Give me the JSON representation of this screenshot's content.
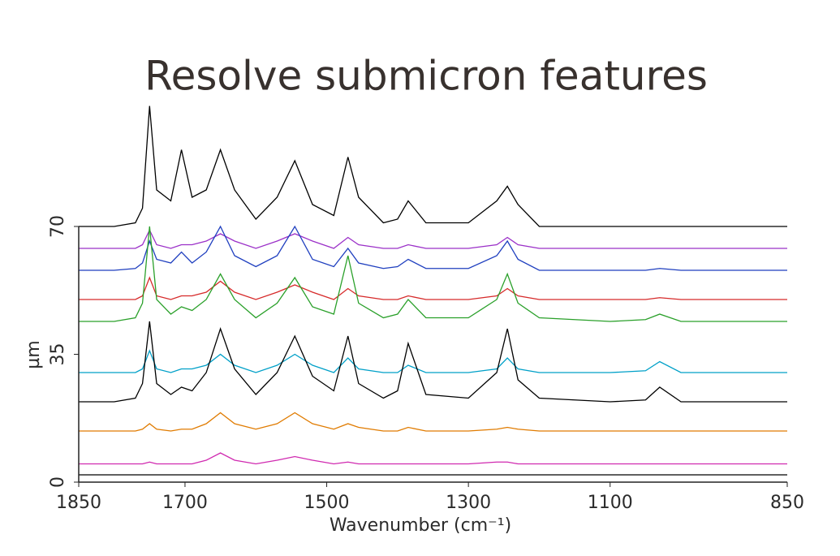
{
  "chart_data": {
    "type": "waterfall",
    "title": "Resolve submicron features",
    "x_label": "Wavenumber (cm⁻¹)",
    "y_label": "µm",
    "xlim": [
      1850,
      850
    ],
    "ylim": [
      0,
      70
    ],
    "xticks": [
      1850,
      1700,
      1500,
      1300,
      1100,
      850
    ],
    "yticks": [
      0,
      35,
      70
    ],
    "x": [
      1850,
      1800,
      1770,
      1760,
      1750,
      1740,
      1720,
      1705,
      1690,
      1670,
      1650,
      1630,
      1600,
      1570,
      1545,
      1520,
      1490,
      1470,
      1455,
      1420,
      1400,
      1385,
      1360,
      1300,
      1260,
      1245,
      1230,
      1200,
      1150,
      1100,
      1050,
      1030,
      1000,
      950,
      900,
      850
    ],
    "series": [
      {
        "color": "#000000",
        "values": [
          70,
          70,
          71,
          75,
          103,
          80,
          77,
          91,
          78,
          80,
          91,
          80,
          72,
          78,
          88,
          76,
          73,
          89,
          78,
          71,
          72,
          77,
          71,
          71,
          77,
          81,
          76,
          70,
          70,
          70,
          70,
          70,
          70,
          70,
          70,
          70
        ]
      },
      {
        "color": "#9b30c8",
        "values": [
          64,
          64,
          64,
          65,
          69,
          65,
          64,
          65,
          65,
          66,
          68,
          66,
          64,
          66,
          68,
          66,
          64,
          67,
          65,
          64,
          64,
          65,
          64,
          64,
          65,
          67,
          65,
          64,
          64,
          64,
          64,
          64,
          64,
          64,
          64,
          64
        ]
      },
      {
        "color": "#1f3fbf",
        "values": [
          58,
          58,
          58.5,
          60,
          66,
          61,
          60,
          63,
          60,
          63,
          70,
          62,
          59,
          62,
          70,
          61,
          59,
          64,
          60,
          58.5,
          59,
          61,
          58.5,
          58.5,
          62,
          66,
          61,
          58,
          58,
          58,
          58,
          58.5,
          58,
          58,
          58,
          58
        ]
      },
      {
        "color": "#d62a2a",
        "values": [
          50,
          50,
          50,
          51,
          56,
          51,
          50,
          51,
          51,
          52,
          55,
          52,
          50,
          52,
          54,
          52,
          50,
          53,
          51,
          50,
          50,
          51,
          50,
          50,
          51,
          53,
          51,
          50,
          50,
          50,
          50,
          50.5,
          50,
          50,
          50,
          50
        ]
      },
      {
        "color": "#2aa02a",
        "values": [
          44,
          44,
          45,
          49,
          70,
          50,
          46,
          48,
          47,
          50,
          57,
          50,
          45,
          49,
          56,
          48,
          46,
          62,
          49,
          45,
          46,
          50,
          45,
          45,
          50,
          57,
          49,
          45,
          44.5,
          44,
          44.5,
          46,
          44,
          44,
          44,
          44
        ]
      },
      {
        "color": "#00a0c8",
        "values": [
          30,
          30,
          30,
          31,
          36,
          31,
          30,
          31,
          31,
          32,
          35,
          32,
          30,
          32,
          35,
          32,
          30,
          34,
          31,
          30,
          30,
          32,
          30,
          30,
          31,
          34,
          31,
          30,
          30,
          30,
          30.5,
          33,
          30,
          30,
          30,
          30
        ]
      },
      {
        "color": "#000000",
        "values": [
          22,
          22,
          23,
          27,
          44,
          27,
          24,
          26,
          25,
          30,
          42,
          31,
          24,
          30,
          40,
          29,
          25,
          40,
          27,
          23,
          25,
          38,
          24,
          23,
          30,
          42,
          28,
          23,
          22.5,
          22,
          22.5,
          26,
          22,
          22,
          22,
          22
        ]
      },
      {
        "color": "#e07b00",
        "values": [
          14,
          14,
          14,
          14.5,
          16,
          14.5,
          14,
          14.5,
          14.5,
          16,
          19,
          16,
          14.5,
          16,
          19,
          16,
          14.5,
          16,
          15,
          14,
          14,
          15,
          14,
          14,
          14.5,
          15,
          14.5,
          14,
          14,
          14,
          14,
          14,
          14,
          14,
          14,
          14
        ]
      },
      {
        "color": "#d02ab0",
        "values": [
          5,
          5,
          5,
          5,
          5.5,
          5,
          5,
          5,
          5,
          6,
          8,
          6,
          5,
          6,
          7,
          6,
          5,
          5.5,
          5,
          5,
          5,
          5,
          5,
          5,
          5.5,
          5.5,
          5,
          5,
          5,
          5,
          5,
          5,
          5,
          5,
          5,
          5
        ]
      },
      {
        "color": "#000000",
        "values": [
          2,
          2,
          2,
          2,
          2,
          2,
          2,
          2,
          2,
          2,
          2,
          2,
          2,
          2,
          2,
          2,
          2,
          2,
          2,
          2,
          2,
          2,
          2,
          2,
          2,
          2,
          2,
          2,
          2,
          2,
          2,
          2,
          2,
          2,
          2,
          2
        ]
      }
    ]
  }
}
